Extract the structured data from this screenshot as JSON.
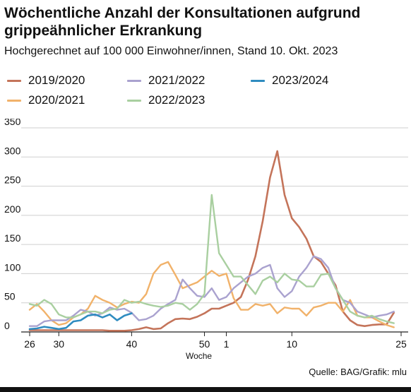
{
  "header": {
    "title": "Wöchentliche Anzahl der Konsultationen aufgrund grippeähnlicher Erkrankung",
    "subtitle": "Hochgerechnet auf 100 000 Einwohner/innen, Stand 10. Okt. 2023"
  },
  "footer": {
    "source": "Quelle: BAG/Grafik: mlu"
  },
  "chart_data": {
    "type": "line",
    "xlabel": "Woche",
    "ylabel": "",
    "ylim": [
      0,
      350
    ],
    "yticks": [
      0,
      50,
      100,
      150,
      200,
      250,
      300,
      350
    ],
    "xticks": [
      {
        "pos": 0,
        "label": "26"
      },
      {
        "pos": 4,
        "label": "30"
      },
      {
        "pos": 14,
        "label": "40"
      },
      {
        "pos": 24,
        "label": "50"
      },
      {
        "pos": 27,
        "label": "1"
      },
      {
        "pos": 36,
        "label": "10"
      },
      {
        "pos": 51,
        "label": "25"
      }
    ],
    "x_range": [
      0,
      52
    ],
    "x_note": "positions are season week index from week 26 (0) to week 25 (51)",
    "grid": "horizontal",
    "legend": "top",
    "series": [
      {
        "name": "2019/2020",
        "color": "#c4745a",
        "width": 2.6,
        "values": [
          3,
          3,
          3,
          3,
          3,
          3,
          3,
          3,
          3,
          3,
          3,
          2,
          2,
          2,
          3,
          5,
          8,
          5,
          6,
          15,
          22,
          23,
          22,
          26,
          32,
          40,
          40,
          45,
          50,
          60,
          90,
          130,
          190,
          265,
          310,
          235,
          195,
          180,
          160,
          130,
          120,
          100,
          80,
          35,
          20,
          12,
          10,
          12,
          13,
          13,
          33
        ]
      },
      {
        "name": "2020/2021",
        "color": "#f1b26a",
        "width": 2.4,
        "values": [
          38,
          48,
          35,
          20,
          12,
          15,
          25,
          30,
          40,
          62,
          55,
          50,
          42,
          48,
          52,
          50,
          65,
          100,
          115,
          120,
          98,
          75,
          80,
          85,
          95,
          105,
          96,
          100,
          58,
          38,
          38,
          48,
          45,
          48,
          32,
          42,
          40,
          40,
          28,
          42,
          45,
          50,
          50,
          35,
          55,
          28,
          25,
          25,
          18,
          12,
          8
        ]
      },
      {
        "name": "2021/2022",
        "color": "#aaa2cf",
        "width": 2.4,
        "values": [
          10,
          10,
          18,
          20,
          20,
          20,
          28,
          38,
          35,
          28,
          32,
          42,
          38,
          40,
          33,
          20,
          22,
          28,
          40,
          48,
          55,
          90,
          75,
          62,
          60,
          75,
          55,
          60,
          75,
          85,
          95,
          100,
          110,
          115,
          75,
          60,
          70,
          95,
          110,
          130,
          125,
          110,
          75,
          55,
          50,
          35,
          30,
          25,
          28,
          30,
          35
        ]
      },
      {
        "name": "2022/2023",
        "color": "#a9cfa0",
        "width": 2.4,
        "values": [
          48,
          45,
          55,
          48,
          30,
          25,
          25,
          30,
          35,
          35,
          32,
          38,
          40,
          55,
          50,
          52,
          48,
          45,
          43,
          45,
          50,
          48,
          38,
          48,
          65,
          235,
          135,
          115,
          95,
          95,
          80,
          65,
          88,
          95,
          85,
          100,
          90,
          88,
          78,
          78,
          98,
          100,
          75,
          55,
          35,
          28,
          25,
          28,
          22,
          18,
          15
        ]
      },
      {
        "name": "2023/2024",
        "color": "#2f8cc0",
        "width": 2.6,
        "values": [
          5,
          6,
          9,
          7,
          5,
          7,
          18,
          20,
          28,
          30,
          25,
          30,
          20,
          28,
          32
        ]
      }
    ]
  }
}
